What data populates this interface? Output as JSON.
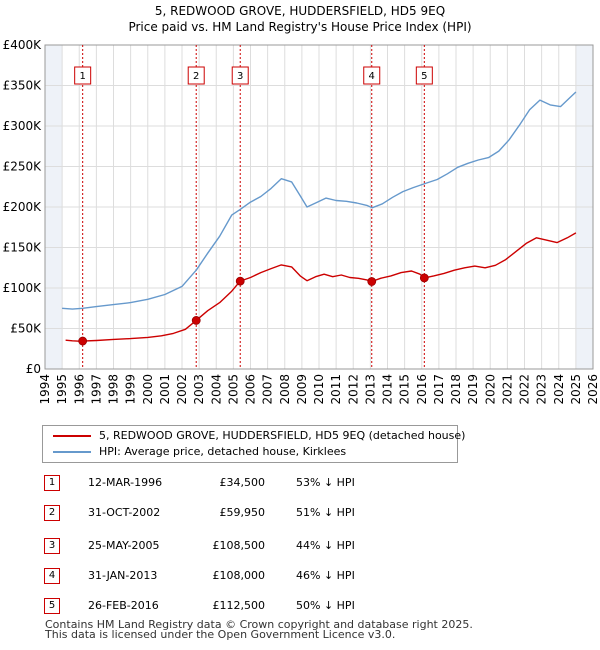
{
  "colors": {
    "property": "#cc0000",
    "hpi": "#6699cc",
    "grid": "#dddddd",
    "shade": "#eef2f8"
  },
  "chart_data": {
    "type": "line",
    "title": "5, REDWOOD GROVE, HUDDERSFIELD, HD5 9EQ",
    "subtitle": "Price paid vs. HM Land Registry's House Price Index (HPI)",
    "xlim": [
      1994,
      2026
    ],
    "ylim": [
      0,
      400000
    ],
    "y_ticks": [
      {
        "value": 0,
        "label": "£0"
      },
      {
        "value": 50000,
        "label": "£50K"
      },
      {
        "value": 100000,
        "label": "£100K"
      },
      {
        "value": 150000,
        "label": "£150K"
      },
      {
        "value": 200000,
        "label": "£200K"
      },
      {
        "value": 250000,
        "label": "£250K"
      },
      {
        "value": 300000,
        "label": "£300K"
      },
      {
        "value": 350000,
        "label": "£350K"
      },
      {
        "value": 400000,
        "label": "£400K"
      }
    ],
    "x_ticks": [
      "1994",
      "1995",
      "1996",
      "1997",
      "1998",
      "1999",
      "2000",
      "2001",
      "2002",
      "2003",
      "2004",
      "2005",
      "2006",
      "2007",
      "2008",
      "2009",
      "2010",
      "2011",
      "2012",
      "2013",
      "2014",
      "2015",
      "2016",
      "2017",
      "2018",
      "2019",
      "2020",
      "2021",
      "2022",
      "2023",
      "2024",
      "2025",
      "2026"
    ],
    "series": [
      {
        "name": "5, REDWOOD GROVE, HUDDERSFIELD, HD5 9EQ (detached house)",
        "points": [
          [
            1995.2,
            35500
          ],
          [
            1995.6,
            34800
          ],
          [
            1996.0,
            34300
          ],
          [
            1996.2,
            34500
          ],
          [
            1997.0,
            35200
          ],
          [
            1998.0,
            36500
          ],
          [
            1999.0,
            37500
          ],
          [
            2000.0,
            39000
          ],
          [
            2000.8,
            41000
          ],
          [
            2001.5,
            44000
          ],
          [
            2002.2,
            49000
          ],
          [
            2002.83,
            59950
          ],
          [
            2003.5,
            72000
          ],
          [
            2004.2,
            82000
          ],
          [
            2004.9,
            96000
          ],
          [
            2005.4,
            108500
          ],
          [
            2006.0,
            113000
          ],
          [
            2006.6,
            119000
          ],
          [
            2007.2,
            124000
          ],
          [
            2007.8,
            128500
          ],
          [
            2008.4,
            126000
          ],
          [
            2008.9,
            115000
          ],
          [
            2009.3,
            109000
          ],
          [
            2009.8,
            114000
          ],
          [
            2010.3,
            117000
          ],
          [
            2010.8,
            114000
          ],
          [
            2011.3,
            116000
          ],
          [
            2011.8,
            113000
          ],
          [
            2012.3,
            112000
          ],
          [
            2012.8,
            110000
          ],
          [
            2013.08,
            108000
          ],
          [
            2013.6,
            112000
          ],
          [
            2014.2,
            115000
          ],
          [
            2014.8,
            119000
          ],
          [
            2015.4,
            121000
          ],
          [
            2015.9,
            117000
          ],
          [
            2016.15,
            112500
          ],
          [
            2016.7,
            115000
          ],
          [
            2017.3,
            118000
          ],
          [
            2017.9,
            122000
          ],
          [
            2018.5,
            125000
          ],
          [
            2019.1,
            127000
          ],
          [
            2019.7,
            125000
          ],
          [
            2020.3,
            128000
          ],
          [
            2020.9,
            135000
          ],
          [
            2021.5,
            145000
          ],
          [
            2022.1,
            155000
          ],
          [
            2022.7,
            162000
          ],
          [
            2023.3,
            159000
          ],
          [
            2023.9,
            156000
          ],
          [
            2024.5,
            162000
          ],
          [
            2025.0,
            168000
          ]
        ]
      },
      {
        "name": "HPI: Average price, detached house, Kirklees",
        "points": [
          [
            1995.0,
            75000
          ],
          [
            1995.6,
            74000
          ],
          [
            1996.2,
            75000
          ],
          [
            1997.0,
            77000
          ],
          [
            1998.0,
            79500
          ],
          [
            1999.0,
            82000
          ],
          [
            2000.0,
            86000
          ],
          [
            2001.0,
            92000
          ],
          [
            2002.0,
            102000
          ],
          [
            2002.83,
            122000
          ],
          [
            2003.5,
            143000
          ],
          [
            2004.2,
            164000
          ],
          [
            2004.9,
            190000
          ],
          [
            2005.4,
            197000
          ],
          [
            2006.0,
            206000
          ],
          [
            2006.6,
            213000
          ],
          [
            2007.2,
            223000
          ],
          [
            2007.8,
            235000
          ],
          [
            2008.4,
            231000
          ],
          [
            2008.9,
            214000
          ],
          [
            2009.3,
            200000
          ],
          [
            2009.8,
            205000
          ],
          [
            2010.4,
            211000
          ],
          [
            2011.0,
            208000
          ],
          [
            2011.6,
            207000
          ],
          [
            2012.2,
            205000
          ],
          [
            2012.8,
            202000
          ],
          [
            2013.1,
            199000
          ],
          [
            2013.7,
            204000
          ],
          [
            2014.3,
            212000
          ],
          [
            2014.9,
            219000
          ],
          [
            2015.5,
            224000
          ],
          [
            2016.2,
            229000
          ],
          [
            2016.9,
            234000
          ],
          [
            2017.5,
            241000
          ],
          [
            2018.1,
            249000
          ],
          [
            2018.7,
            254000
          ],
          [
            2019.3,
            258000
          ],
          [
            2019.9,
            261000
          ],
          [
            2020.5,
            269000
          ],
          [
            2021.1,
            283000
          ],
          [
            2021.7,
            301000
          ],
          [
            2022.3,
            320000
          ],
          [
            2022.9,
            332000
          ],
          [
            2023.5,
            326000
          ],
          [
            2024.1,
            324000
          ],
          [
            2024.6,
            334000
          ],
          [
            2025.0,
            342000
          ]
        ]
      }
    ],
    "sales": [
      {
        "num": "1",
        "x": 1996.2,
        "price": 34500
      },
      {
        "num": "2",
        "x": 2002.83,
        "price": 59950
      },
      {
        "num": "3",
        "x": 2005.4,
        "price": 108500
      },
      {
        "num": "4",
        "x": 2013.08,
        "price": 108000
      },
      {
        "num": "5",
        "x": 2016.15,
        "price": 112500
      }
    ],
    "shaded_ranges": [
      [
        1994,
        1995
      ],
      [
        2025,
        2026
      ]
    ]
  },
  "legend": {
    "property_label": "5, REDWOOD GROVE, HUDDERSFIELD, HD5 9EQ (detached house)",
    "hpi_label": "HPI: Average price, detached house, Kirklees"
  },
  "sales_table": [
    {
      "num": "1",
      "date": "12-MAR-1996",
      "price": "£34,500",
      "hpi": "53% ↓ HPI"
    },
    {
      "num": "2",
      "date": "31-OCT-2002",
      "price": "£59,950",
      "hpi": "51% ↓ HPI"
    },
    {
      "num": "3",
      "date": "25-MAY-2005",
      "price": "£108,500",
      "hpi": "44% ↓ HPI"
    },
    {
      "num": "4",
      "date": "31-JAN-2013",
      "price": "£108,000",
      "hpi": "46% ↓ HPI"
    },
    {
      "num": "5",
      "date": "26-FEB-2016",
      "price": "£112,500",
      "hpi": "50% ↓ HPI"
    }
  ],
  "footer": {
    "line1": "Contains HM Land Registry data © Crown copyright and database right 2025.",
    "line2": "This data is licensed under the Open Government Licence v3.0."
  }
}
